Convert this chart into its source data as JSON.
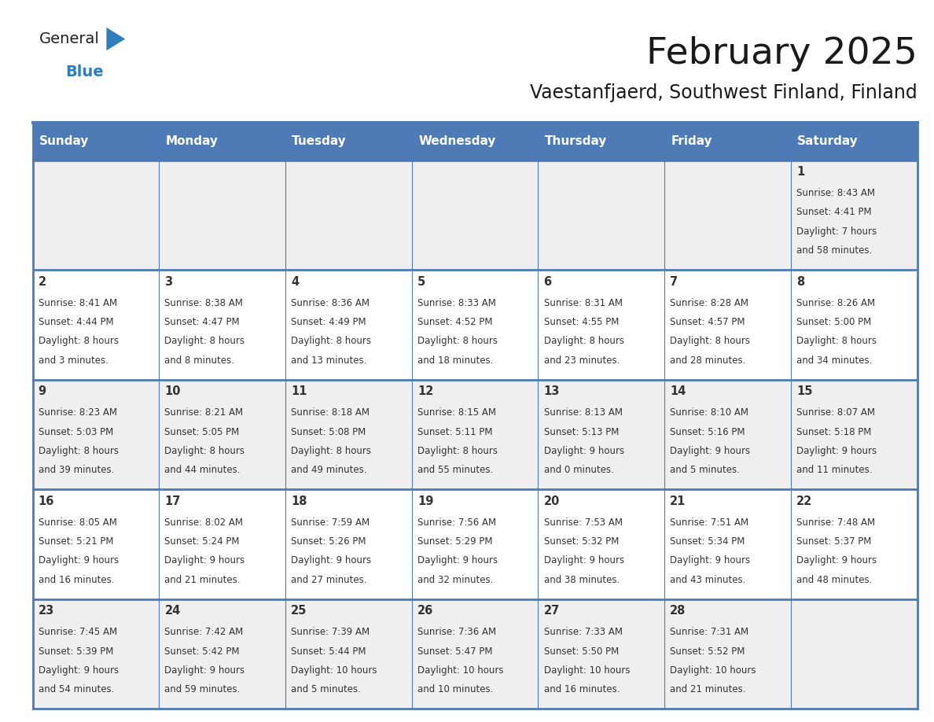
{
  "title": "February 2025",
  "subtitle": "Vaestanfjaerd, Southwest Finland, Finland",
  "days_of_week": [
    "Sunday",
    "Monday",
    "Tuesday",
    "Wednesday",
    "Thursday",
    "Friday",
    "Saturday"
  ],
  "header_bg": "#4e7ab5",
  "header_text": "#ffffff",
  "cell_bg_odd": "#efefef",
  "cell_bg_even": "#ffffff",
  "border_color": "#4e7ab5",
  "title_color": "#1a1a1a",
  "subtitle_color": "#1a1a1a",
  "day_num_color": "#333333",
  "text_color": "#333333",
  "days": [
    {
      "day": 1,
      "col": 6,
      "row": 0,
      "sunrise": "8:43 AM",
      "sunset": "4:41 PM",
      "daylight_line1": "Daylight: 7 hours",
      "daylight_line2": "and 58 minutes."
    },
    {
      "day": 2,
      "col": 0,
      "row": 1,
      "sunrise": "8:41 AM",
      "sunset": "4:44 PM",
      "daylight_line1": "Daylight: 8 hours",
      "daylight_line2": "and 3 minutes."
    },
    {
      "day": 3,
      "col": 1,
      "row": 1,
      "sunrise": "8:38 AM",
      "sunset": "4:47 PM",
      "daylight_line1": "Daylight: 8 hours",
      "daylight_line2": "and 8 minutes."
    },
    {
      "day": 4,
      "col": 2,
      "row": 1,
      "sunrise": "8:36 AM",
      "sunset": "4:49 PM",
      "daylight_line1": "Daylight: 8 hours",
      "daylight_line2": "and 13 minutes."
    },
    {
      "day": 5,
      "col": 3,
      "row": 1,
      "sunrise": "8:33 AM",
      "sunset": "4:52 PM",
      "daylight_line1": "Daylight: 8 hours",
      "daylight_line2": "and 18 minutes."
    },
    {
      "day": 6,
      "col": 4,
      "row": 1,
      "sunrise": "8:31 AM",
      "sunset": "4:55 PM",
      "daylight_line1": "Daylight: 8 hours",
      "daylight_line2": "and 23 minutes."
    },
    {
      "day": 7,
      "col": 5,
      "row": 1,
      "sunrise": "8:28 AM",
      "sunset": "4:57 PM",
      "daylight_line1": "Daylight: 8 hours",
      "daylight_line2": "and 28 minutes."
    },
    {
      "day": 8,
      "col": 6,
      "row": 1,
      "sunrise": "8:26 AM",
      "sunset": "5:00 PM",
      "daylight_line1": "Daylight: 8 hours",
      "daylight_line2": "and 34 minutes."
    },
    {
      "day": 9,
      "col": 0,
      "row": 2,
      "sunrise": "8:23 AM",
      "sunset": "5:03 PM",
      "daylight_line1": "Daylight: 8 hours",
      "daylight_line2": "and 39 minutes."
    },
    {
      "day": 10,
      "col": 1,
      "row": 2,
      "sunrise": "8:21 AM",
      "sunset": "5:05 PM",
      "daylight_line1": "Daylight: 8 hours",
      "daylight_line2": "and 44 minutes."
    },
    {
      "day": 11,
      "col": 2,
      "row": 2,
      "sunrise": "8:18 AM",
      "sunset": "5:08 PM",
      "daylight_line1": "Daylight: 8 hours",
      "daylight_line2": "and 49 minutes."
    },
    {
      "day": 12,
      "col": 3,
      "row": 2,
      "sunrise": "8:15 AM",
      "sunset": "5:11 PM",
      "daylight_line1": "Daylight: 8 hours",
      "daylight_line2": "and 55 minutes."
    },
    {
      "day": 13,
      "col": 4,
      "row": 2,
      "sunrise": "8:13 AM",
      "sunset": "5:13 PM",
      "daylight_line1": "Daylight: 9 hours",
      "daylight_line2": "and 0 minutes."
    },
    {
      "day": 14,
      "col": 5,
      "row": 2,
      "sunrise": "8:10 AM",
      "sunset": "5:16 PM",
      "daylight_line1": "Daylight: 9 hours",
      "daylight_line2": "and 5 minutes."
    },
    {
      "day": 15,
      "col": 6,
      "row": 2,
      "sunrise": "8:07 AM",
      "sunset": "5:18 PM",
      "daylight_line1": "Daylight: 9 hours",
      "daylight_line2": "and 11 minutes."
    },
    {
      "day": 16,
      "col": 0,
      "row": 3,
      "sunrise": "8:05 AM",
      "sunset": "5:21 PM",
      "daylight_line1": "Daylight: 9 hours",
      "daylight_line2": "and 16 minutes."
    },
    {
      "day": 17,
      "col": 1,
      "row": 3,
      "sunrise": "8:02 AM",
      "sunset": "5:24 PM",
      "daylight_line1": "Daylight: 9 hours",
      "daylight_line2": "and 21 minutes."
    },
    {
      "day": 18,
      "col": 2,
      "row": 3,
      "sunrise": "7:59 AM",
      "sunset": "5:26 PM",
      "daylight_line1": "Daylight: 9 hours",
      "daylight_line2": "and 27 minutes."
    },
    {
      "day": 19,
      "col": 3,
      "row": 3,
      "sunrise": "7:56 AM",
      "sunset": "5:29 PM",
      "daylight_line1": "Daylight: 9 hours",
      "daylight_line2": "and 32 minutes."
    },
    {
      "day": 20,
      "col": 4,
      "row": 3,
      "sunrise": "7:53 AM",
      "sunset": "5:32 PM",
      "daylight_line1": "Daylight: 9 hours",
      "daylight_line2": "and 38 minutes."
    },
    {
      "day": 21,
      "col": 5,
      "row": 3,
      "sunrise": "7:51 AM",
      "sunset": "5:34 PM",
      "daylight_line1": "Daylight: 9 hours",
      "daylight_line2": "and 43 minutes."
    },
    {
      "day": 22,
      "col": 6,
      "row": 3,
      "sunrise": "7:48 AM",
      "sunset": "5:37 PM",
      "daylight_line1": "Daylight: 9 hours",
      "daylight_line2": "and 48 minutes."
    },
    {
      "day": 23,
      "col": 0,
      "row": 4,
      "sunrise": "7:45 AM",
      "sunset": "5:39 PM",
      "daylight_line1": "Daylight: 9 hours",
      "daylight_line2": "and 54 minutes."
    },
    {
      "day": 24,
      "col": 1,
      "row": 4,
      "sunrise": "7:42 AM",
      "sunset": "5:42 PM",
      "daylight_line1": "Daylight: 9 hours",
      "daylight_line2": "and 59 minutes."
    },
    {
      "day": 25,
      "col": 2,
      "row": 4,
      "sunrise": "7:39 AM",
      "sunset": "5:44 PM",
      "daylight_line1": "Daylight: 10 hours",
      "daylight_line2": "and 5 minutes."
    },
    {
      "day": 26,
      "col": 3,
      "row": 4,
      "sunrise": "7:36 AM",
      "sunset": "5:47 PM",
      "daylight_line1": "Daylight: 10 hours",
      "daylight_line2": "and 10 minutes."
    },
    {
      "day": 27,
      "col": 4,
      "row": 4,
      "sunrise": "7:33 AM",
      "sunset": "5:50 PM",
      "daylight_line1": "Daylight: 10 hours",
      "daylight_line2": "and 16 minutes."
    },
    {
      "day": 28,
      "col": 5,
      "row": 4,
      "sunrise": "7:31 AM",
      "sunset": "5:52 PM",
      "daylight_line1": "Daylight: 10 hours",
      "daylight_line2": "and 21 minutes."
    }
  ],
  "num_rows": 5,
  "num_cols": 7,
  "logo_general_color": "#222222",
  "logo_blue_color": "#2e7ebd",
  "logo_triangle_color": "#2e7ebd",
  "fig_width": 11.88,
  "fig_height": 9.18,
  "dpi": 100
}
